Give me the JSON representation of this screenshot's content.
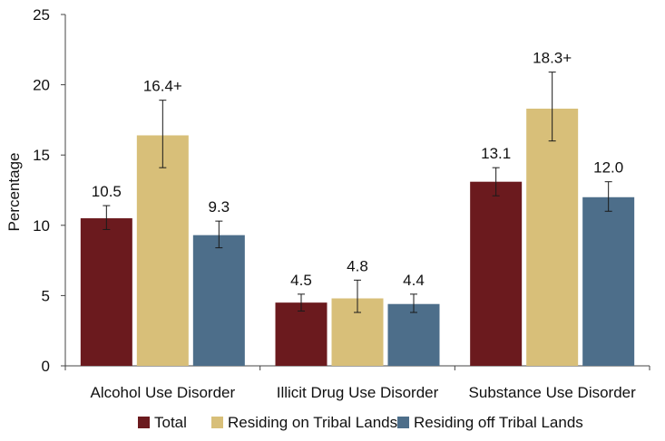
{
  "chart_data": {
    "type": "bar",
    "title": "",
    "xlabel": "",
    "ylabel": "Percentage",
    "ylim": [
      0,
      25
    ],
    "yticks": [
      0,
      5,
      10,
      15,
      20,
      25
    ],
    "categories": [
      "Alcohol Use Disorder",
      "Illicit Drug Use Disorder",
      "Substance Use Disorder"
    ],
    "series": [
      {
        "name": "Total",
        "color": "#6b1a1e",
        "values": [
          10.5,
          4.5,
          13.1
        ],
        "labels": [
          "10.5",
          "4.5",
          "13.1"
        ],
        "ci_low": [
          9.7,
          3.9,
          12.1
        ],
        "ci_high": [
          11.4,
          5.1,
          14.1
        ]
      },
      {
        "name": "Residing on Tribal Lands",
        "color": "#d8bf79",
        "values": [
          16.4,
          4.8,
          18.3
        ],
        "labels": [
          "16.4+",
          "4.8",
          "18.3+"
        ],
        "ci_low": [
          14.1,
          3.8,
          16.0
        ],
        "ci_high": [
          18.9,
          6.1,
          20.9
        ]
      },
      {
        "name": "Residing off Tribal Lands",
        "color": "#4d6e8a",
        "values": [
          9.3,
          4.4,
          12.0
        ],
        "labels": [
          "9.3",
          "4.4",
          "12.0"
        ],
        "ci_low": [
          8.4,
          3.8,
          11.0
        ],
        "ci_high": [
          10.3,
          5.1,
          13.1
        ]
      }
    ],
    "legend": {
      "position": "bottom",
      "items": [
        "Total",
        "Residing on Tribal Lands",
        "Residing off Tribal Lands"
      ]
    }
  }
}
